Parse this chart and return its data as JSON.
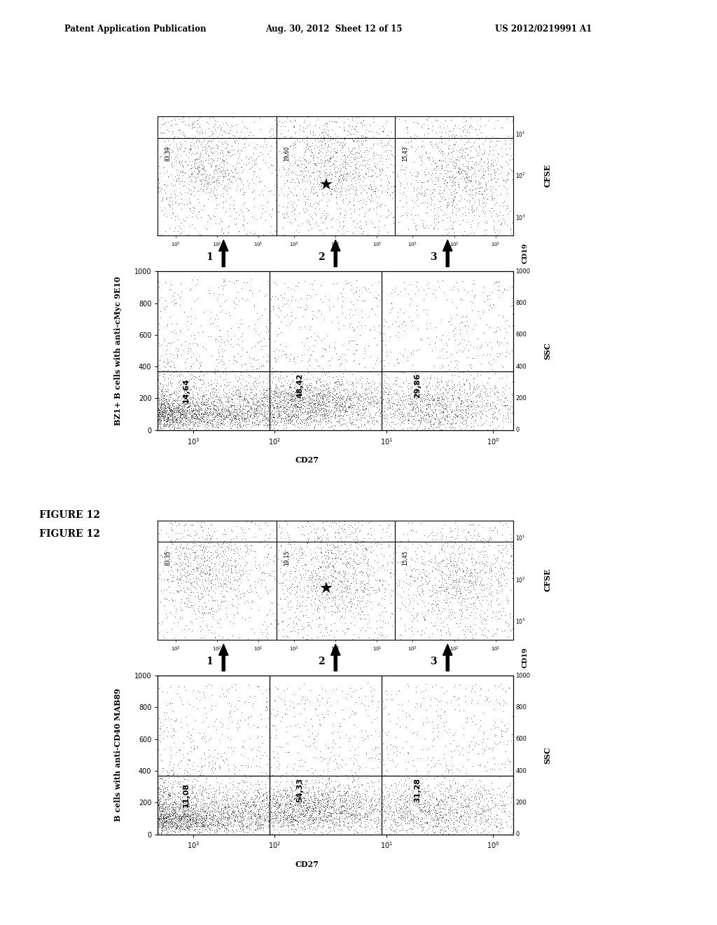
{
  "header_left": "Patent Application Publication",
  "header_center": "Aug. 30, 2012  Sheet 12 of 15",
  "header_right": "US 2012/0219991 A1",
  "figure_label": "FIGURE 12",
  "panel1": {
    "y_label": "BZ1+ B cells with anti-cMyc 9E10",
    "bottom_values": [
      "14,64",
      "48,42",
      "29,86"
    ],
    "top_values": [
      "83,39",
      "19,60",
      "15,43"
    ],
    "gate_numbers": [
      "1",
      "2",
      "3"
    ]
  },
  "panel2": {
    "y_label": "B cells with anti-CD40 MAB89",
    "bottom_values": [
      "11,08",
      "54,33",
      "31,28"
    ],
    "top_values": [
      "83,35",
      "19,15",
      "15,45"
    ],
    "gate_numbers": [
      "1",
      "2",
      "3"
    ]
  },
  "bg_color": "#ffffff"
}
